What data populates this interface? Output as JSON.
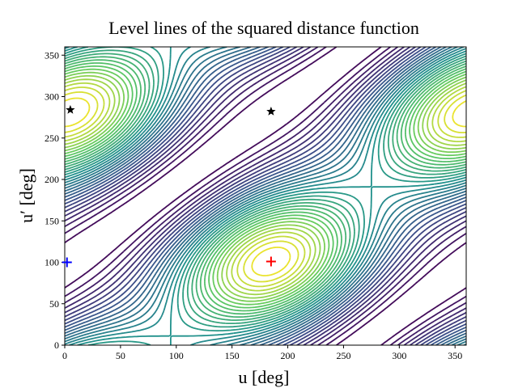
{
  "chart_data": {
    "type": "contour",
    "title": "Level lines of the squared distance function",
    "xlabel": "u [deg]",
    "ylabel": "u′ [deg]",
    "xlim": [
      0,
      360
    ],
    "ylim": [
      0,
      360
    ],
    "xticks": [
      0,
      50,
      100,
      150,
      200,
      250,
      300,
      350
    ],
    "yticks": [
      0,
      50,
      100,
      150,
      200,
      250,
      300,
      350
    ],
    "colormap": "viridis",
    "markers": [
      {
        "x": 5,
        "y": 284,
        "marker": "star",
        "color": "#000000"
      },
      {
        "x": 185,
        "y": 282,
        "marker": "star",
        "color": "#000000"
      },
      {
        "x": 2,
        "y": 100,
        "marker": "plus",
        "color": "#0000ff"
      },
      {
        "x": 185,
        "y": 101,
        "marker": "plus",
        "color": "#ff0000"
      }
    ]
  }
}
